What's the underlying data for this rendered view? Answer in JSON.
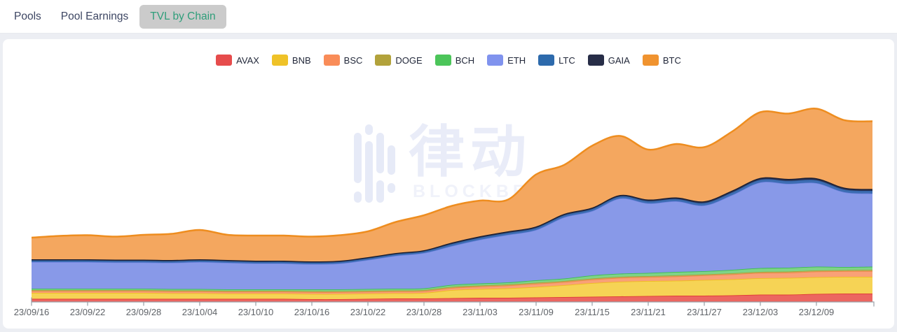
{
  "tabs": {
    "items": [
      {
        "label": "Pools",
        "active": false
      },
      {
        "label": "Pool Earnings",
        "active": false
      },
      {
        "label": "TVL by Chain",
        "active": true
      }
    ],
    "active_text_color": "#2f9e7a",
    "active_pill_color": "#cbcbcb"
  },
  "watermark": {
    "title": "律动",
    "subtitle": "BLOCKBEATS"
  },
  "legend": {
    "position": "top",
    "items": [
      {
        "label": "AVAX",
        "color": "#e64c4c"
      },
      {
        "label": "BNB",
        "color": "#efc228"
      },
      {
        "label": "BSC",
        "color": "#f98c58"
      },
      {
        "label": "DOGE",
        "color": "#b2a23b"
      },
      {
        "label": "BCH",
        "color": "#4cc55a"
      },
      {
        "label": "ETH",
        "color": "#8093ee"
      },
      {
        "label": "LTC",
        "color": "#2d6aac"
      },
      {
        "label": "GAIA",
        "color": "#272d47"
      },
      {
        "label": "BTC",
        "color": "#f0932f"
      }
    ]
  },
  "chart_data": {
    "type": "area",
    "stacked": true,
    "title": "",
    "xlabel": "",
    "ylabel": "",
    "grid": false,
    "y_axis_visible": false,
    "legend_position": "top",
    "ylim": [
      0,
      295
    ],
    "x": [
      "23/09/16",
      "23/09/19",
      "23/09/22",
      "23/09/25",
      "23/09/28",
      "23/10/01",
      "23/10/04",
      "23/10/07",
      "23/10/10",
      "23/10/13",
      "23/10/16",
      "23/10/19",
      "23/10/22",
      "23/10/25",
      "23/10/28",
      "23/10/31",
      "23/11/03",
      "23/11/06",
      "23/11/09",
      "23/11/12",
      "23/11/15",
      "23/11/18",
      "23/11/21",
      "23/11/24",
      "23/11/27",
      "23/11/30",
      "23/12/03",
      "23/12/06",
      "23/12/09",
      "23/12/12",
      "23/12/15"
    ],
    "x_tick_labels": [
      "23/09/16",
      "23/09/22",
      "23/09/28",
      "23/10/04",
      "23/10/10",
      "23/10/16",
      "23/10/22",
      "23/10/28",
      "23/11/03",
      "23/11/09",
      "23/11/15",
      "23/11/21",
      "23/11/27",
      "23/12/03",
      "23/12/09"
    ],
    "units": "relative TVL (unlabeled axis)",
    "series": [
      {
        "name": "AVAX",
        "fill": "#ec6660",
        "line": "#df3935",
        "lw": 1.8,
        "values": [
          4.5,
          4.5,
          4.5,
          4.5,
          4.5,
          4.5,
          4.5,
          4.5,
          4.5,
          4.5,
          4,
          4,
          4.5,
          5,
          5,
          5.5,
          6,
          6,
          6.5,
          7,
          7.5,
          8,
          8.5,
          9,
          9,
          9.5,
          10.5,
          10.5,
          11.5,
          12,
          12
        ]
      },
      {
        "name": "BNB",
        "fill": "#f6d355",
        "line": "#eebd20",
        "lw": 1.8,
        "values": [
          8.5,
          8.5,
          8.5,
          8.5,
          8.5,
          8,
          8,
          7.5,
          7.5,
          7.5,
          7.5,
          7.5,
          7.5,
          7.5,
          8,
          11.5,
          12.5,
          13.5,
          15,
          17,
          19.5,
          21,
          21.5,
          21.5,
          22.5,
          23,
          23.5,
          24,
          24,
          24,
          24
        ]
      },
      {
        "name": "BSC",
        "fill": "#f9a177",
        "line": "#f5854a",
        "lw": 1.8,
        "values": [
          2.5,
          2.5,
          2.5,
          2.5,
          2.5,
          2.5,
          2.5,
          2.5,
          2.5,
          2.5,
          2.5,
          2.5,
          2.5,
          2.5,
          2.5,
          3,
          3.5,
          4,
          4.5,
          4.5,
          5,
          5.5,
          5.5,
          6,
          6.5,
          7,
          7.5,
          7.5,
          8,
          8,
          8
        ]
      },
      {
        "name": "DOGE",
        "fill": "#bfb060",
        "line": "#ac9b33",
        "lw": 1.5,
        "values": [
          1.5,
          1.5,
          1.5,
          1.5,
          1.5,
          1.5,
          1.5,
          1.5,
          1.5,
          1.5,
          1.5,
          1.5,
          1.5,
          1.5,
          1.5,
          1.5,
          1.5,
          1.5,
          1.5,
          1.5,
          1.5,
          1.5,
          1.5,
          1.5,
          1.5,
          1.5,
          1.5,
          1.5,
          1.5,
          1.5,
          2
        ]
      },
      {
        "name": "BCH",
        "fill": "#7ed487",
        "line": "#3dbc52",
        "lw": 1.8,
        "values": [
          2,
          2,
          2,
          2,
          2,
          2,
          2,
          2,
          2,
          2,
          2.5,
          2.5,
          2.5,
          2.5,
          2.5,
          3,
          3,
          3,
          3.5,
          3.5,
          4.5,
          4.5,
          4.5,
          5,
          4.5,
          5,
          5.5,
          5.5,
          5.5,
          4.5,
          4.5
        ]
      },
      {
        "name": "ETH",
        "fill": "#8899e8",
        "line": "#7285e2",
        "lw": 1.5,
        "values": [
          38,
          38,
          38,
          37.5,
          37.5,
          37.5,
          38.5,
          38,
          37,
          37,
          36,
          37,
          41.5,
          47,
          50.5,
          55.5,
          62.5,
          68,
          72,
          87.5,
          92,
          107.5,
          99.5,
          101,
          94,
          107,
          122.5,
          120,
          119.5,
          107,
          104.5
        ]
      },
      {
        "name": "LTC",
        "fill": "#3d6db4",
        "line": "#2f5f9e",
        "lw": 1.5,
        "values": [
          2.4,
          2.4,
          2.4,
          2.4,
          2.4,
          2.4,
          2.4,
          2.4,
          2.4,
          2.4,
          2.4,
          2.4,
          2.4,
          2.4,
          2.4,
          3,
          3,
          3,
          3,
          3,
          3,
          3,
          3.3,
          3.3,
          3.6,
          3.9,
          3.9,
          4.2,
          4.2,
          3.9,
          3.9
        ]
      },
      {
        "name": "GAIA",
        "fill": "#2a3050",
        "line": "#161b2e",
        "lw": 2.2,
        "values": [
          1.6,
          1.6,
          1.6,
          1.6,
          1.6,
          1.6,
          1.6,
          1.6,
          1.6,
          1.6,
          1.6,
          1.6,
          1.6,
          1.6,
          1.6,
          2,
          2,
          2,
          2,
          2,
          2,
          2,
          2.2,
          2.2,
          2.4,
          2.6,
          2.6,
          2.8,
          2.8,
          2.6,
          2.6
        ]
      },
      {
        "name": "BTC",
        "fill": "#f4a75f",
        "line": "#ee8d1f",
        "lw": 2.5,
        "values": [
          31,
          33.5,
          34.5,
          33,
          35.5,
          37.5,
          42,
          36,
          36,
          36,
          35.5,
          36.5,
          37,
          44.5,
          50,
          52.5,
          51,
          45.5,
          74.5,
          70,
          88.5,
          84.5,
          71.5,
          76.5,
          77.5,
          84.5,
          94,
          93.5,
          99.5,
          96.5,
          97
        ]
      }
    ]
  }
}
